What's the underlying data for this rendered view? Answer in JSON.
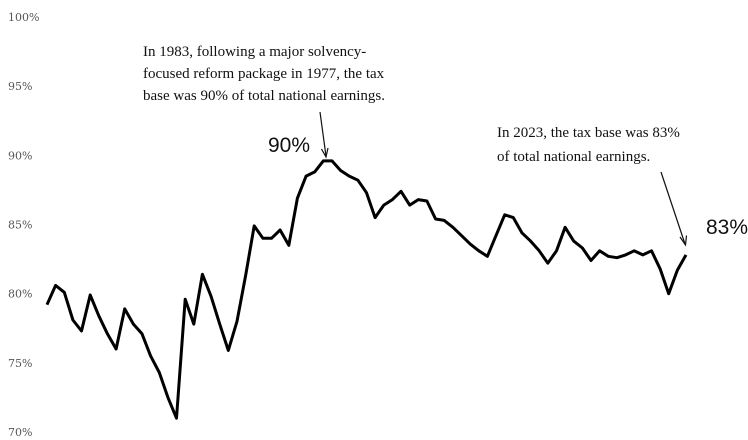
{
  "chart_data": {
    "type": "line",
    "ylim": [
      70,
      100
    ],
    "yticks": [
      {
        "value": 70,
        "label": "70%"
      },
      {
        "value": 75,
        "label": "75%"
      },
      {
        "value": 80,
        "label": "80%"
      },
      {
        "value": 85,
        "label": "85%"
      },
      {
        "value": 90,
        "label": "90%"
      },
      {
        "value": 95,
        "label": "95%"
      },
      {
        "value": 100,
        "label": "100%"
      }
    ],
    "color": "#000000",
    "values": [
      79.2,
      80.6,
      80.1,
      78.1,
      77.3,
      79.9,
      78.4,
      77.1,
      76.0,
      78.9,
      77.8,
      77.1,
      75.5,
      74.3,
      72.5,
      71.0,
      79.6,
      77.8,
      81.4,
      79.8,
      77.8,
      75.9,
      78.0,
      81.3,
      84.9,
      84.0,
      84.0,
      84.6,
      83.5,
      86.9,
      88.5,
      88.8,
      89.6,
      89.6,
      88.9,
      88.5,
      88.2,
      87.3,
      85.5,
      86.4,
      86.8,
      87.4,
      86.4,
      86.8,
      86.7,
      85.4,
      85.3,
      84.8,
      84.2,
      83.6,
      83.1,
      82.7,
      84.2,
      85.7,
      85.5,
      84.4,
      83.8,
      83.1,
      82.2,
      83.1,
      84.8,
      83.8,
      83.3,
      82.4,
      83.1,
      82.7,
      82.6,
      82.8,
      83.1,
      82.8,
      83.1,
      81.8,
      80.0,
      81.7,
      82.8
    ],
    "annotations": [
      {
        "lines": [
          "In 1983, following a major solvency-",
          "focused reform package in 1977, the tax",
          "base was 90% of total national earnings."
        ],
        "label": "90%"
      },
      {
        "lines": [
          "In 2023, the tax base was 83%",
          "of total national earnings."
        ],
        "label": "83%"
      }
    ]
  }
}
